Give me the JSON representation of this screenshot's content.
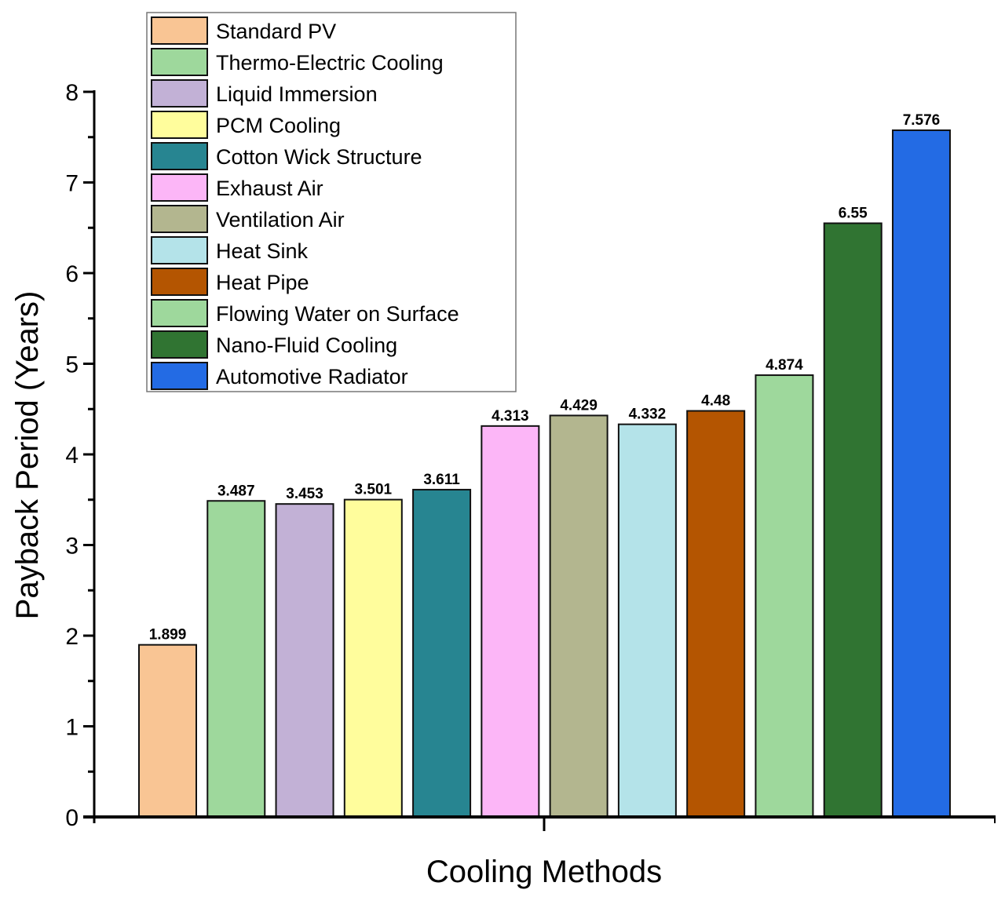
{
  "chart_data": {
    "type": "bar",
    "title": "",
    "xlabel": "Cooling Methods",
    "ylabel": "Payback Period (Years)",
    "ylim": [
      0,
      8
    ],
    "yticks": [
      "0",
      "1",
      "2",
      "3",
      "4",
      "5",
      "6",
      "7",
      "8"
    ],
    "grid": false,
    "legend_position": "top-left",
    "categories": [
      "Standard PV",
      "Thermo-Electric Cooling",
      "Liquid Immersion",
      "PCM Cooling",
      "Cotton Wick Structure",
      "Exhaust Air",
      "Ventilation Air",
      "Heat Sink",
      "Heat Pipe",
      "Flowing Water on Surface",
      "Nano-Fluid Cooling",
      "Automotive Radiator"
    ],
    "values": [
      1.899,
      3.487,
      3.453,
      3.501,
      3.611,
      4.313,
      4.429,
      4.332,
      4.48,
      4.874,
      6.55,
      7.576
    ],
    "value_labels": [
      "1.899",
      "3.487",
      "3.453",
      "3.501",
      "3.611",
      "4.313",
      "4.429",
      "4.332",
      "4.48",
      "4.874",
      "6.55",
      "7.576"
    ],
    "colors": [
      "#F9C594",
      "#9ED89C",
      "#C2B1D6",
      "#FFFD9C",
      "#278591",
      "#FCB6F7",
      "#B3B68F",
      "#B4E3E9",
      "#B45501",
      "#9ED89C",
      "#307432",
      "#236BE4"
    ]
  }
}
